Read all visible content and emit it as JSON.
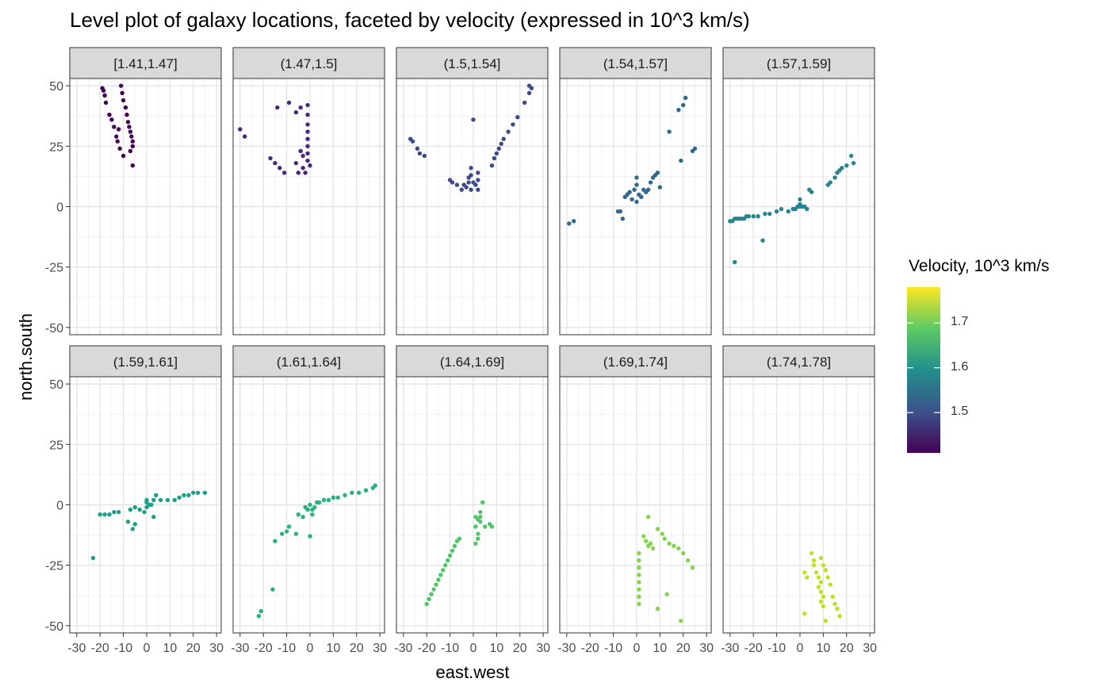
{
  "title": "Level plot of galaxy locations, faceted by velocity (expressed in 10^3 km/s)",
  "chart_data": {
    "type": "scatter",
    "title": "Level plot of galaxy locations, faceted by velocity (expressed in 10^3 km/s)",
    "xlabel": "east.west",
    "ylabel": "north.south",
    "xlim": [
      -33,
      32
    ],
    "ylim": [
      -53,
      53
    ],
    "x_ticks": [
      -30,
      -20,
      -10,
      0,
      10,
      20,
      30
    ],
    "y_ticks": [
      -50,
      -25,
      0,
      25,
      50
    ],
    "x_tick_labels": [
      "-30",
      "-20",
      "-10",
      "0",
      "10",
      "20",
      "30"
    ],
    "y_tick_labels": [
      "-50",
      "-25",
      "0",
      "25",
      "50"
    ],
    "grid": true,
    "legend": {
      "title": "Velocity, 10^3 km/s",
      "position": "right",
      "type": "colorbar",
      "range": [
        1.41,
        1.78
      ],
      "ticks": [
        1.5,
        1.6,
        1.7
      ],
      "tick_labels": [
        "1.5",
        "1.6",
        "1.7"
      ]
    },
    "facets": [
      {
        "label": "[1.41,1.47]",
        "velocity": 1.44,
        "color": "#440154",
        "points": [
          [
            -19,
            49
          ],
          [
            -18,
            46
          ],
          [
            -17.5,
            43
          ],
          [
            -16,
            38
          ],
          [
            -15,
            36
          ],
          [
            -14,
            33
          ],
          [
            -13,
            29
          ],
          [
            -12.5,
            27
          ],
          [
            -11.5,
            24
          ],
          [
            -10,
            21
          ],
          [
            -11,
            50
          ],
          [
            -10.5,
            47
          ],
          [
            -10,
            44
          ],
          [
            -9,
            41
          ],
          [
            -8.5,
            38
          ],
          [
            -8,
            35
          ],
          [
            -7.5,
            33
          ],
          [
            -7,
            31
          ],
          [
            -6.5,
            29
          ],
          [
            -6,
            27
          ],
          [
            -6,
            25
          ],
          [
            -7,
            23
          ],
          [
            -6,
            17
          ],
          [
            -18.5,
            48
          ],
          [
            -12,
            32
          ]
        ]
      },
      {
        "label": "(1.47,1.5]",
        "velocity": 1.485,
        "color": "#472a7a",
        "points": [
          [
            -30,
            32
          ],
          [
            -28,
            29
          ],
          [
            -17,
            20
          ],
          [
            -15,
            18
          ],
          [
            -13,
            16
          ],
          [
            -11,
            14
          ],
          [
            -14,
            41
          ],
          [
            -9,
            43
          ],
          [
            -6,
            18
          ],
          [
            -5,
            14
          ],
          [
            -4,
            23
          ],
          [
            -3,
            21
          ],
          [
            -3,
            16
          ],
          [
            -2,
            14
          ],
          [
            -4,
            41
          ],
          [
            -1,
            42
          ],
          [
            -1,
            38
          ],
          [
            -1,
            34
          ],
          [
            -1,
            31
          ],
          [
            -1,
            28
          ],
          [
            -1,
            25
          ],
          [
            -1,
            22
          ],
          [
            -1,
            19
          ],
          [
            0,
            17
          ],
          [
            -6,
            39
          ]
        ]
      },
      {
        "label": "(1.5,1.54]",
        "velocity": 1.52,
        "color": "#3e4a89",
        "points": [
          [
            -27,
            28
          ],
          [
            -26,
            27
          ],
          [
            -24,
            24
          ],
          [
            -23,
            22
          ],
          [
            -21,
            21
          ],
          [
            -10,
            11
          ],
          [
            -9,
            10
          ],
          [
            -7,
            9
          ],
          [
            -5,
            7
          ],
          [
            -3,
            8
          ],
          [
            -2,
            12
          ],
          [
            -1,
            16
          ],
          [
            -2,
            10
          ],
          [
            0,
            10
          ],
          [
            1,
            9
          ],
          [
            2,
            11
          ],
          [
            2,
            7
          ],
          [
            -1,
            7
          ],
          [
            0,
            36
          ],
          [
            2,
            14
          ],
          [
            8,
            17
          ],
          [
            9,
            20
          ],
          [
            10,
            22
          ],
          [
            11,
            24
          ],
          [
            12,
            26
          ],
          [
            13,
            28
          ],
          [
            15,
            31
          ],
          [
            17,
            34
          ],
          [
            19,
            37
          ],
          [
            22,
            43
          ],
          [
            24,
            47
          ],
          [
            25,
            49
          ],
          [
            24,
            50
          ],
          [
            -4,
            9
          ],
          [
            -1,
            13
          ]
        ]
      },
      {
        "label": "(1.54,1.57]",
        "velocity": 1.555,
        "color": "#31688e",
        "points": [
          [
            -29,
            -7
          ],
          [
            -27,
            -6
          ],
          [
            -8,
            -2
          ],
          [
            -6,
            -5
          ],
          [
            -5,
            4
          ],
          [
            -4,
            5
          ],
          [
            -3,
            6
          ],
          [
            -2,
            3
          ],
          [
            -1,
            7
          ],
          [
            0,
            9
          ],
          [
            0,
            12
          ],
          [
            0,
            2
          ],
          [
            1,
            5
          ],
          [
            2,
            4
          ],
          [
            3,
            7
          ],
          [
            4,
            6
          ],
          [
            5,
            7
          ],
          [
            6,
            10
          ],
          [
            7,
            12
          ],
          [
            8,
            13
          ],
          [
            9,
            14
          ],
          [
            10,
            8
          ],
          [
            14,
            31
          ],
          [
            18,
            40
          ],
          [
            20,
            42
          ],
          [
            21,
            45
          ],
          [
            19,
            19
          ],
          [
            24,
            23
          ],
          [
            25,
            24
          ],
          [
            -7,
            -2
          ]
        ]
      },
      {
        "label": "(1.57,1.59]",
        "velocity": 1.58,
        "color": "#26838f",
        "points": [
          [
            -30,
            -6
          ],
          [
            -29,
            -6
          ],
          [
            -28,
            -5
          ],
          [
            -27,
            -5
          ],
          [
            -26,
            -5
          ],
          [
            -25,
            -5
          ],
          [
            -24,
            -5
          ],
          [
            -23,
            -4
          ],
          [
            -22,
            -4
          ],
          [
            -20,
            -4
          ],
          [
            -18,
            -4
          ],
          [
            -15,
            -3
          ],
          [
            -13,
            -3
          ],
          [
            -10,
            -2
          ],
          [
            -8,
            -1
          ],
          [
            -5,
            -2
          ],
          [
            -3,
            -1
          ],
          [
            -1,
            0
          ],
          [
            0,
            0
          ],
          [
            1,
            0
          ],
          [
            0,
            1
          ],
          [
            0,
            3
          ],
          [
            2,
            0
          ],
          [
            3,
            -1
          ],
          [
            4,
            7
          ],
          [
            5,
            6
          ],
          [
            -28,
            -23
          ],
          [
            -16,
            -14
          ],
          [
            12,
            9
          ],
          [
            13,
            10
          ],
          [
            15,
            12
          ],
          [
            16,
            14
          ],
          [
            17,
            15
          ],
          [
            18,
            16
          ],
          [
            20,
            17
          ],
          [
            22,
            21
          ],
          [
            23,
            18
          ],
          [
            -2,
            -1
          ]
        ]
      },
      {
        "label": "(1.59,1.61]",
        "velocity": 1.6,
        "color": "#1f9e89",
        "points": [
          [
            -23,
            -22
          ],
          [
            -18,
            -4
          ],
          [
            -16,
            -4
          ],
          [
            -14,
            -3
          ],
          [
            -12,
            -3
          ],
          [
            -8,
            -7
          ],
          [
            -6,
            -10
          ],
          [
            -5,
            -8
          ],
          [
            -7,
            -2
          ],
          [
            -5,
            -1
          ],
          [
            -3,
            -2
          ],
          [
            -1,
            -3
          ],
          [
            0,
            -1
          ],
          [
            0,
            1
          ],
          [
            0,
            2
          ],
          [
            1,
            0
          ],
          [
            2,
            0
          ],
          [
            3,
            -5
          ],
          [
            4,
            4
          ],
          [
            3,
            2
          ],
          [
            6,
            2
          ],
          [
            9,
            2
          ],
          [
            12,
            2
          ],
          [
            14,
            3
          ],
          [
            16,
            4
          ],
          [
            18,
            4
          ],
          [
            20,
            5
          ],
          [
            22,
            5
          ],
          [
            25,
            5
          ],
          [
            -20,
            -4
          ]
        ]
      },
      {
        "label": "(1.61,1.64]",
        "velocity": 1.625,
        "color": "#2bb07f",
        "points": [
          [
            -22,
            -46
          ],
          [
            -21,
            -44
          ],
          [
            -16,
            -35
          ],
          [
            -15,
            -15
          ],
          [
            -12,
            -12
          ],
          [
            -10,
            -11
          ],
          [
            -9,
            -9
          ],
          [
            -6,
            -12
          ],
          [
            -5,
            -4
          ],
          [
            -3,
            -5
          ],
          [
            -2,
            -1
          ],
          [
            -1,
            -2
          ],
          [
            0,
            0
          ],
          [
            1,
            -4
          ],
          [
            1,
            -2
          ],
          [
            2,
            -1
          ],
          [
            3,
            1
          ],
          [
            4,
            1
          ],
          [
            6,
            2
          ],
          [
            8,
            2
          ],
          [
            10,
            3
          ],
          [
            12,
            3
          ],
          [
            15,
            4
          ],
          [
            18,
            5
          ],
          [
            21,
            5
          ],
          [
            24,
            6
          ],
          [
            27,
            7
          ],
          [
            28,
            8
          ],
          [
            0,
            -13
          ]
        ]
      },
      {
        "label": "(1.64,1.69]",
        "velocity": 1.665,
        "color": "#51c56a",
        "points": [
          [
            -20,
            -41
          ],
          [
            -19,
            -39
          ],
          [
            -18,
            -37
          ],
          [
            -17,
            -35
          ],
          [
            -16,
            -33
          ],
          [
            -15,
            -31
          ],
          [
            -14,
            -29
          ],
          [
            -13,
            -27
          ],
          [
            -12,
            -25
          ],
          [
            -11,
            -23
          ],
          [
            -10,
            -21
          ],
          [
            -9,
            -19
          ],
          [
            -8,
            -17
          ],
          [
            -7,
            -15
          ],
          [
            -6,
            -14
          ],
          [
            1,
            -5
          ],
          [
            1,
            -9
          ],
          [
            2,
            -12
          ],
          [
            1,
            -16
          ],
          [
            2,
            -14
          ],
          [
            3,
            -7
          ],
          [
            3,
            -3
          ],
          [
            4,
            1
          ],
          [
            5,
            -9
          ],
          [
            7,
            -8
          ],
          [
            8,
            -9
          ],
          [
            2,
            -6
          ],
          [
            3,
            -5
          ]
        ]
      },
      {
        "label": "(1.69,1.74]",
        "velocity": 1.715,
        "color": "#85d54a",
        "points": [
          [
            1,
            -20
          ],
          [
            1,
            -23
          ],
          [
            1,
            -26
          ],
          [
            1,
            -29
          ],
          [
            1,
            -32
          ],
          [
            1,
            -35
          ],
          [
            1,
            -38
          ],
          [
            1,
            -41
          ],
          [
            3,
            -13
          ],
          [
            4,
            -15
          ],
          [
            5,
            -17
          ],
          [
            6,
            -16
          ],
          [
            7,
            -18
          ],
          [
            5,
            -5
          ],
          [
            9,
            -10
          ],
          [
            11,
            -12
          ],
          [
            12,
            -14
          ],
          [
            14,
            -16
          ],
          [
            16,
            -17
          ],
          [
            18,
            -18
          ],
          [
            20,
            -20
          ],
          [
            22,
            -23
          ],
          [
            24,
            -26
          ],
          [
            9,
            -43
          ],
          [
            13,
            -37
          ],
          [
            19,
            -48
          ]
        ]
      },
      {
        "label": "(1.74,1.78]",
        "velocity": 1.76,
        "color": "#c2df23",
        "points": [
          [
            2,
            -28
          ],
          [
            2,
            -45
          ],
          [
            3,
            -30
          ],
          [
            5,
            -20
          ],
          [
            6,
            -23
          ],
          [
            6,
            -25
          ],
          [
            7,
            -28
          ],
          [
            8,
            -30
          ],
          [
            9,
            -32
          ],
          [
            8,
            -34
          ],
          [
            9,
            -36
          ],
          [
            10,
            -38
          ],
          [
            9,
            -40
          ],
          [
            9,
            -22
          ],
          [
            10,
            -25
          ],
          [
            11,
            -27
          ],
          [
            12,
            -30
          ],
          [
            13,
            -33
          ],
          [
            14,
            -38
          ],
          [
            15,
            -41
          ],
          [
            16,
            -43
          ],
          [
            17,
            -46
          ],
          [
            11,
            -48
          ],
          [
            10,
            -42
          ]
        ]
      }
    ]
  }
}
